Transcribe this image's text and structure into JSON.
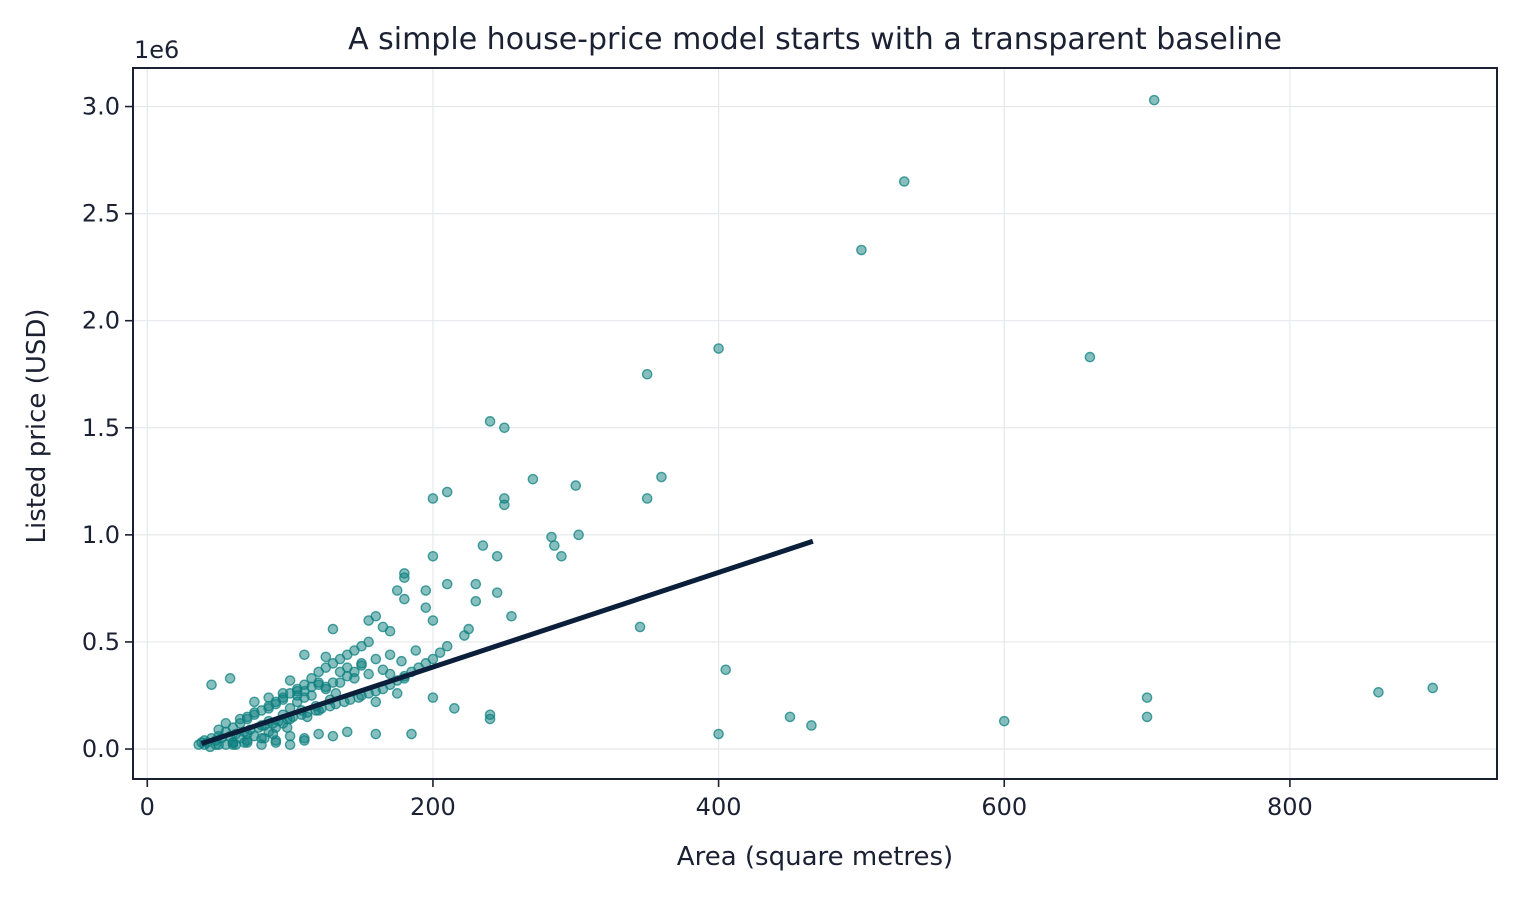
{
  "chart_data": {
    "type": "scatter",
    "title": "A simple house-price model starts with a transparent baseline",
    "xlabel": "Area (square metres)",
    "ylabel": "Listed price (USD)",
    "y_offset_label": "1e6",
    "xlim": [
      -10,
      945
    ],
    "ylim": [
      -0.14,
      3.18
    ],
    "xticks": [
      0,
      200,
      400,
      600,
      800
    ],
    "xtick_labels": [
      "0",
      "200",
      "400",
      "600",
      "800"
    ],
    "yticks": [
      0.0,
      0.5,
      1.0,
      1.5,
      2.0,
      2.5,
      3.0
    ],
    "ytick_labels": [
      "0.0",
      "0.5",
      "1.0",
      "1.5",
      "2.0",
      "2.5",
      "3.0"
    ],
    "grid": true,
    "legend": "none",
    "colors": {
      "points": "#0f8080",
      "line": "#0b1f3a",
      "axes": "#1b2133",
      "grid": "#e6e8ec"
    },
    "series": [
      {
        "kind": "points",
        "x": [
          705,
          530,
          500,
          660,
          400,
          350,
          360,
          240,
          250,
          270,
          300,
          302,
          350,
          200,
          210,
          250,
          250,
          235,
          283,
          285,
          290,
          245,
          200,
          180,
          180,
          210,
          230,
          195,
          195,
          160,
          155,
          175,
          180,
          200,
          130,
          255,
          225,
          230,
          345,
          222,
          245,
          405,
          700,
          700,
          450,
          465,
          400,
          600,
          862,
          900,
          240,
          240,
          200,
          215,
          185,
          160,
          165,
          170,
          155,
          150,
          145,
          140,
          135,
          130,
          125,
          120,
          115,
          110,
          105,
          100,
          95,
          90,
          85,
          80,
          75,
          70,
          65,
          60,
          55,
          50,
          45,
          40,
          38,
          42,
          48,
          52,
          58,
          62,
          68,
          72,
          78,
          82,
          88,
          92,
          98,
          102,
          108,
          112,
          118,
          122,
          128,
          132,
          138,
          142,
          148,
          150,
          155,
          160,
          165,
          170,
          175,
          180,
          185,
          190,
          195,
          200,
          205,
          210,
          45,
          58,
          110,
          125,
          100,
          120,
          135,
          140,
          150,
          160,
          170,
          178,
          188,
          80,
          90,
          100,
          110,
          120,
          130,
          140,
          60,
          70,
          80,
          90,
          100,
          110,
          75,
          85,
          95,
          105,
          115,
          125,
          135,
          145,
          155,
          165,
          50,
          55,
          65,
          70,
          75,
          85,
          90,
          95,
          105,
          110,
          115,
          120,
          60,
          65,
          70,
          80,
          85,
          95,
          100,
          105,
          110,
          125,
          130,
          140,
          145,
          150,
          170,
          180,
          50,
          60,
          70,
          75,
          85,
          90,
          95,
          100,
          120,
          160,
          175,
          118,
          112,
          128,
          132,
          108,
          98,
          88,
          82,
          68,
          62,
          55,
          48,
          44,
          40,
          36
        ],
        "y": [
          3.03,
          2.65,
          2.33,
          1.83,
          1.87,
          1.75,
          1.27,
          1.53,
          1.5,
          1.26,
          1.23,
          1.0,
          1.17,
          1.17,
          1.2,
          1.17,
          1.14,
          0.95,
          0.99,
          0.95,
          0.9,
          0.9,
          0.9,
          0.82,
          0.8,
          0.77,
          0.77,
          0.74,
          0.66,
          0.62,
          0.6,
          0.74,
          0.7,
          0.6,
          0.56,
          0.62,
          0.56,
          0.69,
          0.57,
          0.53,
          0.73,
          0.37,
          0.24,
          0.15,
          0.15,
          0.11,
          0.07,
          0.13,
          0.265,
          0.285,
          0.16,
          0.14,
          0.24,
          0.19,
          0.07,
          0.07,
          0.57,
          0.55,
          0.5,
          0.48,
          0.46,
          0.44,
          0.42,
          0.4,
          0.38,
          0.36,
          0.33,
          0.3,
          0.28,
          0.26,
          0.24,
          0.22,
          0.2,
          0.18,
          0.16,
          0.14,
          0.12,
          0.1,
          0.08,
          0.06,
          0.05,
          0.04,
          0.03,
          0.03,
          0.04,
          0.05,
          0.06,
          0.07,
          0.08,
          0.09,
          0.1,
          0.11,
          0.12,
          0.13,
          0.14,
          0.15,
          0.16,
          0.17,
          0.18,
          0.19,
          0.2,
          0.21,
          0.22,
          0.23,
          0.24,
          0.25,
          0.26,
          0.27,
          0.28,
          0.3,
          0.32,
          0.34,
          0.36,
          0.38,
          0.4,
          0.42,
          0.45,
          0.48,
          0.3,
          0.33,
          0.44,
          0.43,
          0.32,
          0.3,
          0.36,
          0.38,
          0.4,
          0.42,
          0.44,
          0.41,
          0.46,
          0.05,
          0.04,
          0.06,
          0.05,
          0.07,
          0.06,
          0.08,
          0.02,
          0.03,
          0.02,
          0.03,
          0.02,
          0.04,
          0.22,
          0.24,
          0.26,
          0.27,
          0.25,
          0.29,
          0.31,
          0.33,
          0.35,
          0.37,
          0.09,
          0.12,
          0.14,
          0.15,
          0.17,
          0.19,
          0.21,
          0.23,
          0.25,
          0.27,
          0.29,
          0.31,
          0.03,
          0.05,
          0.07,
          0.11,
          0.13,
          0.16,
          0.19,
          0.22,
          0.24,
          0.28,
          0.31,
          0.34,
          0.36,
          0.39,
          0.35,
          0.33,
          0.02,
          0.03,
          0.04,
          0.06,
          0.08,
          0.1,
          0.12,
          0.14,
          0.18,
          0.22,
          0.26,
          0.2,
          0.15,
          0.23,
          0.26,
          0.18,
          0.1,
          0.07,
          0.05,
          0.03,
          0.02,
          0.02,
          0.02,
          0.01,
          0.02,
          0.02
        ]
      },
      {
        "kind": "line",
        "x": [
          38,
          466
        ],
        "y": [
          0.025,
          0.97
        ]
      }
    ]
  }
}
